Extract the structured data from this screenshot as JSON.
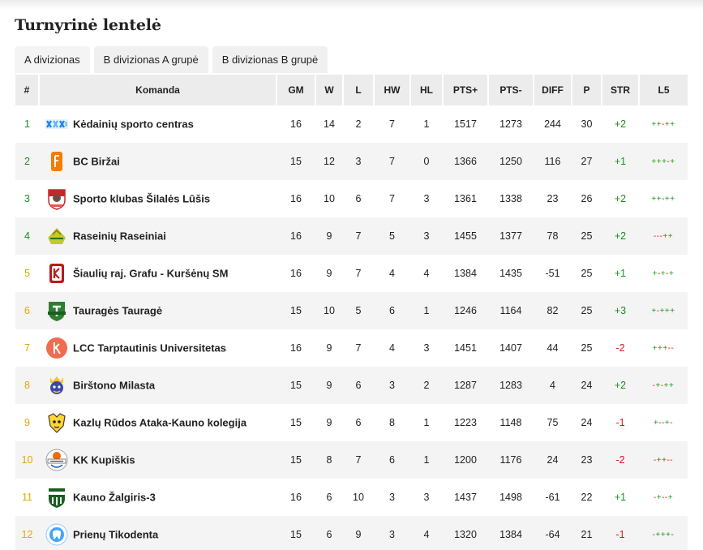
{
  "page": {
    "title": "Turnyrinė lentelė"
  },
  "tabs": [
    {
      "label": "A divizionas"
    },
    {
      "label": "B divizionas A grupė"
    },
    {
      "label": "B divizionas B grupė"
    }
  ],
  "table": {
    "headers": [
      "#",
      "Komanda",
      "GM",
      "W",
      "L",
      "HW",
      "HL",
      "PTS+",
      "PTS-",
      "DIFF",
      "P",
      "STR",
      "L5"
    ],
    "rows": [
      {
        "rank": "1",
        "rank_color": "green",
        "logo": "kedainiai-logo-icon",
        "team": "Kėdainių sporto centras",
        "gm": "16",
        "w": "14",
        "l": "2",
        "hw": "7",
        "hl": "1",
        "pts_plus": "1517",
        "pts_minus": "1273",
        "diff": "244",
        "p": "30",
        "str": "+2",
        "l5": "++-++"
      },
      {
        "rank": "2",
        "rank_color": "green",
        "logo": "birzai-logo-icon",
        "team": "BC Biržai",
        "gm": "15",
        "w": "12",
        "l": "3",
        "hw": "7",
        "hl": "0",
        "pts_plus": "1366",
        "pts_minus": "1250",
        "diff": "116",
        "p": "27",
        "str": "+1",
        "l5": "+++-+"
      },
      {
        "rank": "3",
        "rank_color": "green",
        "logo": "silale-lusis-logo-icon",
        "team": "Sporto klubas Šilalės Lūšis",
        "gm": "16",
        "w": "10",
        "l": "6",
        "hw": "7",
        "hl": "3",
        "pts_plus": "1361",
        "pts_minus": "1338",
        "diff": "23",
        "p": "26",
        "str": "+2",
        "l5": "++-++"
      },
      {
        "rank": "4",
        "rank_color": "green",
        "logo": "raseiniai-logo-icon",
        "team": "Raseinių Raseiniai",
        "gm": "16",
        "w": "9",
        "l": "7",
        "hw": "5",
        "hl": "3",
        "pts_plus": "1455",
        "pts_minus": "1377",
        "diff": "78",
        "p": "25",
        "str": "+2",
        "l5": "---++"
      },
      {
        "rank": "5",
        "rank_color": "gold",
        "logo": "grafu-logo-icon",
        "team": "Šiaulių raj. Grafu - Kuršėnų SM",
        "gm": "16",
        "w": "9",
        "l": "7",
        "hw": "4",
        "hl": "4",
        "pts_plus": "1384",
        "pts_minus": "1435",
        "diff": "-51",
        "p": "25",
        "str": "+1",
        "l5": "+-+-+"
      },
      {
        "rank": "6",
        "rank_color": "gold",
        "logo": "taurage-logo-icon",
        "team": "Tauragės Tauragė",
        "gm": "15",
        "w": "10",
        "l": "5",
        "hw": "6",
        "hl": "1",
        "pts_plus": "1246",
        "pts_minus": "1164",
        "diff": "82",
        "p": "25",
        "str": "+3",
        "l5": "+-+++"
      },
      {
        "rank": "7",
        "rank_color": "gold",
        "logo": "lcc-logo-icon",
        "team": "LCC Tarptautinis Universitetas",
        "gm": "16",
        "w": "9",
        "l": "7",
        "hw": "4",
        "hl": "3",
        "pts_plus": "1451",
        "pts_minus": "1407",
        "diff": "44",
        "p": "25",
        "str": "-2",
        "l5": "+++--"
      },
      {
        "rank": "8",
        "rank_color": "gold",
        "logo": "birstonas-logo-icon",
        "team": "Birštono Milasta",
        "gm": "15",
        "w": "9",
        "l": "6",
        "hw": "3",
        "hl": "2",
        "pts_plus": "1287",
        "pts_minus": "1283",
        "diff": "4",
        "p": "24",
        "str": "+2",
        "l5": "-+-++"
      },
      {
        "rank": "9",
        "rank_color": "gold",
        "logo": "kazlu-ruda-logo-icon",
        "team": "Kazlų Rūdos Ataka-Kauno kolegija",
        "gm": "15",
        "w": "9",
        "l": "6",
        "hw": "8",
        "hl": "1",
        "pts_plus": "1223",
        "pts_minus": "1148",
        "diff": "75",
        "p": "24",
        "str": "-1",
        "l5": "+--+-"
      },
      {
        "rank": "10",
        "rank_color": "gold",
        "logo": "kupiskis-logo-icon",
        "team": "KK Kupiškis",
        "gm": "15",
        "w": "8",
        "l": "7",
        "hw": "6",
        "hl": "1",
        "pts_plus": "1200",
        "pts_minus": "1176",
        "diff": "24",
        "p": "23",
        "str": "-2",
        "l5": "-++--"
      },
      {
        "rank": "11",
        "rank_color": "gold",
        "logo": "zalgiris-logo-icon",
        "team": "Kauno Žalgiris-3",
        "gm": "16",
        "w": "6",
        "l": "10",
        "hw": "3",
        "hl": "3",
        "pts_plus": "1437",
        "pts_minus": "1498",
        "diff": "-61",
        "p": "22",
        "str": "+1",
        "l5": "-+--+"
      },
      {
        "rank": "12",
        "rank_color": "gold",
        "logo": "prienai-logo-icon",
        "team": "Prienų Tikodenta",
        "gm": "15",
        "w": "6",
        "l": "9",
        "hw": "3",
        "hl": "4",
        "pts_plus": "1320",
        "pts_minus": "1384",
        "diff": "-64",
        "p": "21",
        "str": "-1",
        "l5": "-+++-"
      }
    ]
  },
  "colors": {
    "rank_top": "#1a8f1a",
    "rank_mid": "#e6a700",
    "positive": "#1a8f1a",
    "negative": "#d11a1a"
  }
}
